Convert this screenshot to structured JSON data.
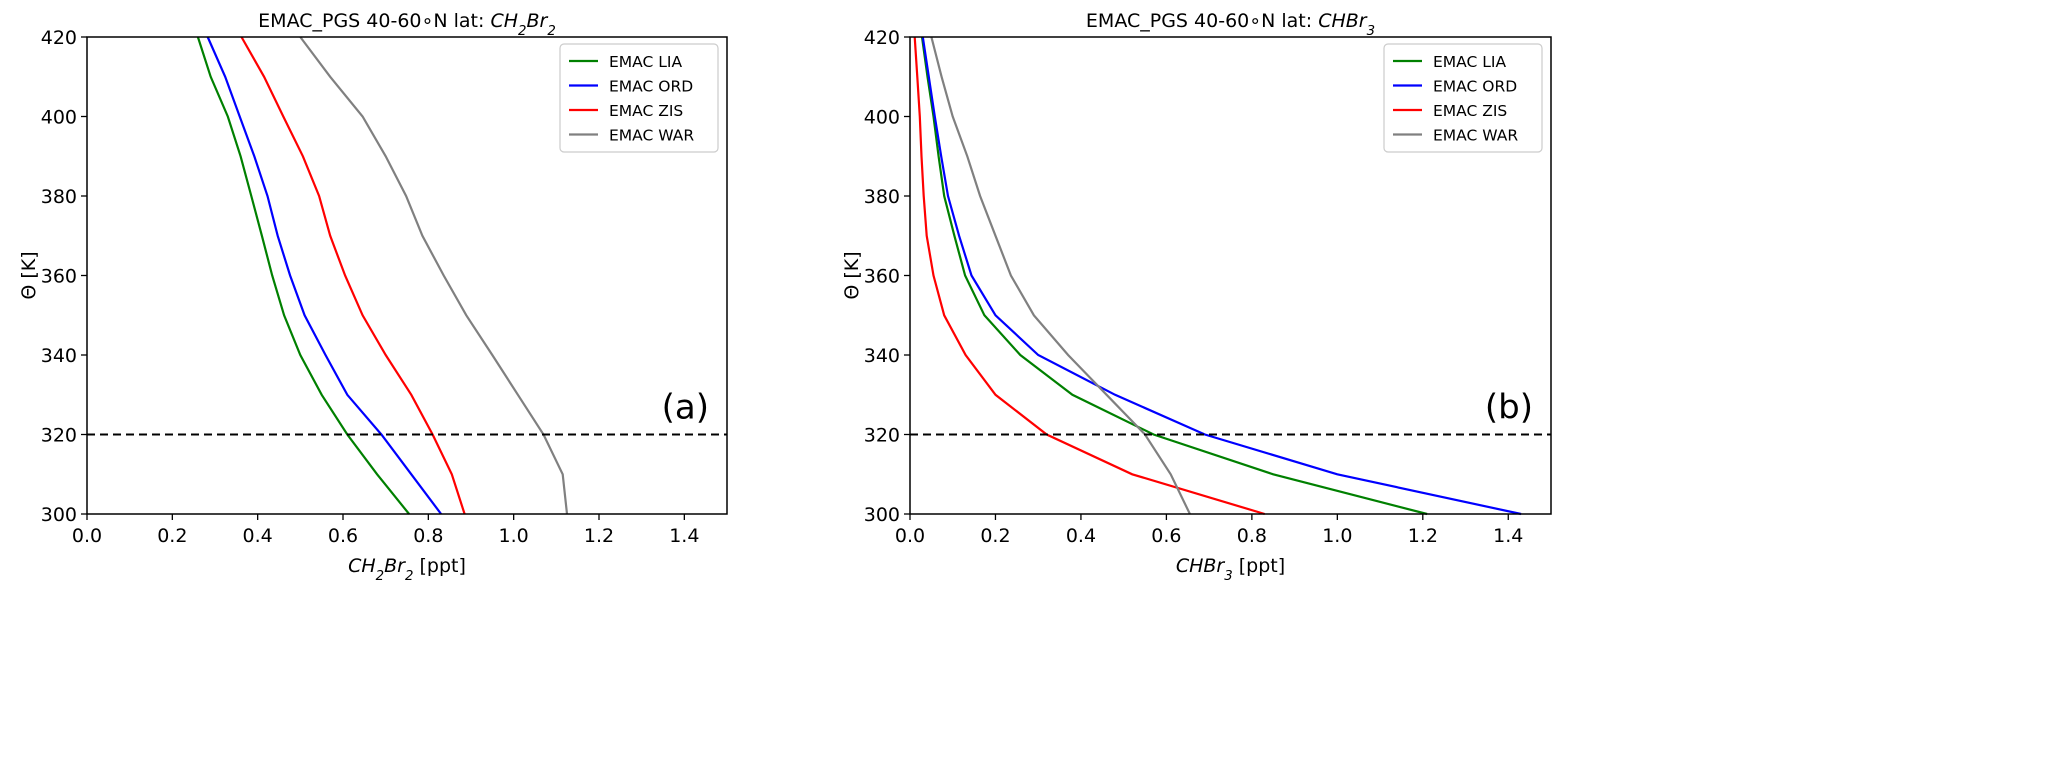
{
  "chart_data": [
    {
      "type": "line",
      "title": "EMAC_PGS 40-60∘N lat: ",
      "title_species": {
        "base": "CH",
        "sub1": "2",
        "mid": "Br",
        "sub2": "2"
      },
      "xlabel_species": {
        "base": "CH",
        "sub1": "2",
        "mid": "Br",
        "sub2": "2"
      },
      "xlabel_unit": " [ppt]",
      "ylabel": "Θ [K]",
      "xlim": [
        0,
        1.5
      ],
      "ylim": [
        300,
        420
      ],
      "xticks": [
        "0.0",
        "0.2",
        "0.4",
        "0.6",
        "0.8",
        "1.0",
        "1.2",
        "1.4"
      ],
      "yticks": [
        "300",
        "320",
        "340",
        "360",
        "380",
        "400",
        "420"
      ],
      "hline": 320,
      "panel_label": "(a)",
      "legend_position": "top-right",
      "y": [
        300,
        310,
        320,
        330,
        340,
        350,
        360,
        370,
        380,
        390,
        400,
        410,
        420
      ],
      "series": [
        {
          "name": "EMAC LIA",
          "color": "#008000",
          "values": [
            0.755,
            0.68,
            0.61,
            0.55,
            0.5,
            0.462,
            0.434,
            0.41,
            0.385,
            0.36,
            0.33,
            0.29,
            0.26
          ]
        },
        {
          "name": "EMAC ORD",
          "color": "#0000ff",
          "values": [
            0.83,
            0.76,
            0.69,
            0.61,
            0.559,
            0.51,
            0.476,
            0.447,
            0.423,
            0.392,
            0.358,
            0.324,
            0.283
          ]
        },
        {
          "name": "EMAC ZIS",
          "color": "#ff0000",
          "values": [
            0.885,
            0.855,
            0.81,
            0.76,
            0.7,
            0.646,
            0.605,
            0.57,
            0.544,
            0.506,
            0.46,
            0.415,
            0.362
          ]
        },
        {
          "name": "EMAC WAR",
          "color": "#808080",
          "values": [
            1.125,
            1.115,
            1.07,
            1.01,
            0.95,
            0.889,
            0.836,
            0.786,
            0.748,
            0.7,
            0.646,
            0.57,
            0.5
          ]
        }
      ]
    },
    {
      "type": "line",
      "title": "EMAC_PGS 40-60∘N lat: ",
      "title_species": {
        "base": "CHBr",
        "sub1": "",
        "mid": "",
        "sub2": "3"
      },
      "xlabel_species": {
        "base": "CHBr",
        "sub1": "",
        "mid": "",
        "sub2": "3"
      },
      "xlabel_unit": " [ppt]",
      "ylabel": "Θ [K]",
      "xlim": [
        0,
        1.5
      ],
      "ylim": [
        300,
        420
      ],
      "xticks": [
        "0.0",
        "0.2",
        "0.4",
        "0.6",
        "0.8",
        "1.0",
        "1.2",
        "1.4"
      ],
      "yticks": [
        "300",
        "320",
        "340",
        "360",
        "380",
        "400",
        "420"
      ],
      "hline": 320,
      "panel_label": "(b)",
      "legend_position": "top-right",
      "y": [
        300,
        310,
        320,
        330,
        340,
        350,
        360,
        370,
        380,
        390,
        400,
        410,
        420
      ],
      "series": [
        {
          "name": "EMAC LIA",
          "color": "#008000",
          "values": [
            1.21,
            0.85,
            0.57,
            0.38,
            0.258,
            0.174,
            0.129,
            0.104,
            0.08,
            0.067,
            0.055,
            0.041,
            0.028
          ]
        },
        {
          "name": "EMAC ORD",
          "color": "#0000ff",
          "values": [
            1.43,
            1.0,
            0.69,
            0.48,
            0.3,
            0.2,
            0.144,
            0.115,
            0.089,
            0.073,
            0.058,
            0.044,
            0.03
          ]
        },
        {
          "name": "EMAC ZIS",
          "color": "#ff0000",
          "values": [
            0.83,
            0.52,
            0.32,
            0.2,
            0.13,
            0.08,
            0.055,
            0.039,
            0.032,
            0.027,
            0.023,
            0.017,
            0.011
          ]
        },
        {
          "name": "EMAC WAR",
          "color": "#808080",
          "values": [
            0.655,
            0.61,
            0.55,
            0.46,
            0.37,
            0.29,
            0.236,
            0.2,
            0.164,
            0.134,
            0.1,
            0.074,
            0.05
          ]
        }
      ]
    }
  ]
}
